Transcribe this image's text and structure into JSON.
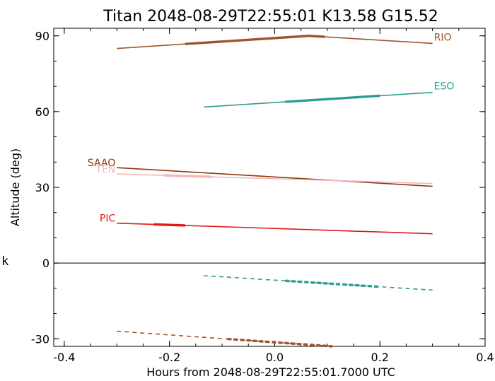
{
  "chart_data": {
    "type": "line",
    "title": "Titan 2048-08-29T22:55:01  K13.58  G15.52",
    "xlabel": "Hours from 2048-08-29T22:55:01.7000 UTC",
    "ylabel": "Altitude (deg)",
    "side_label": "k",
    "xlim": [
      -0.42,
      0.4
    ],
    "ylim": [
      -33,
      93
    ],
    "xticks": [
      -0.4,
      -0.2,
      0.0,
      0.2,
      0.4
    ],
    "xtick_labels": [
      "-0.4",
      "-0.2",
      "0.0",
      "0.2",
      "0.4"
    ],
    "yticks": [
      -30,
      0,
      30,
      60,
      90
    ],
    "ytick_labels": [
      "-30",
      "0",
      "30",
      "60",
      "90"
    ],
    "hline": 0,
    "grid": false,
    "legend": "labels placed at line ends",
    "series": [
      {
        "name": "RIO",
        "color": "#a0522d",
        "style": "solid",
        "label_at": "end",
        "x": [
          -0.3,
          0.065,
          0.3
        ],
        "y": [
          85,
          90,
          87
        ],
        "bold_x": [
          -0.17,
          0.095
        ]
      },
      {
        "name": "ESO",
        "color": "#2e9d92",
        "style": "solid",
        "label_at": "end",
        "x": [
          -0.135,
          0.3
        ],
        "y": [
          61.8,
          67.6
        ],
        "bold_x": [
          0.02,
          0.2
        ]
      },
      {
        "name": "SAAO",
        "color": "#8b3a0f",
        "style": "solid",
        "label_at": "start",
        "x": [
          -0.3,
          0.3
        ],
        "y": [
          37.8,
          30.4
        ],
        "bold_x": []
      },
      {
        "name": "TEN",
        "color": "#f4b6b9",
        "style": "solid",
        "label_at": "start",
        "x": [
          -0.3,
          0.3
        ],
        "y": [
          35.3,
          31.5
        ],
        "bold_x": [
          -0.21,
          -0.12
        ]
      },
      {
        "name": "PIC",
        "color": "#e01a1a",
        "style": "solid",
        "label_at": "start",
        "x": [
          -0.3,
          0.3
        ],
        "y": [
          15.8,
          11.6
        ],
        "bold_x": [
          -0.23,
          -0.17
        ]
      },
      {
        "name": "",
        "color": "#2e9d92",
        "style": "dashed",
        "label_at": "none",
        "x": [
          -0.135,
          0.3
        ],
        "y": [
          -5,
          -10.7
        ],
        "bold_x": [
          0.02,
          0.2
        ]
      },
      {
        "name": "",
        "color": "#a0522d",
        "style": "dashed",
        "label_at": "none",
        "x": [
          -0.3,
          0.11
        ],
        "y": [
          -27,
          -33
        ],
        "bold_x": [
          -0.09,
          0.11
        ]
      }
    ]
  }
}
